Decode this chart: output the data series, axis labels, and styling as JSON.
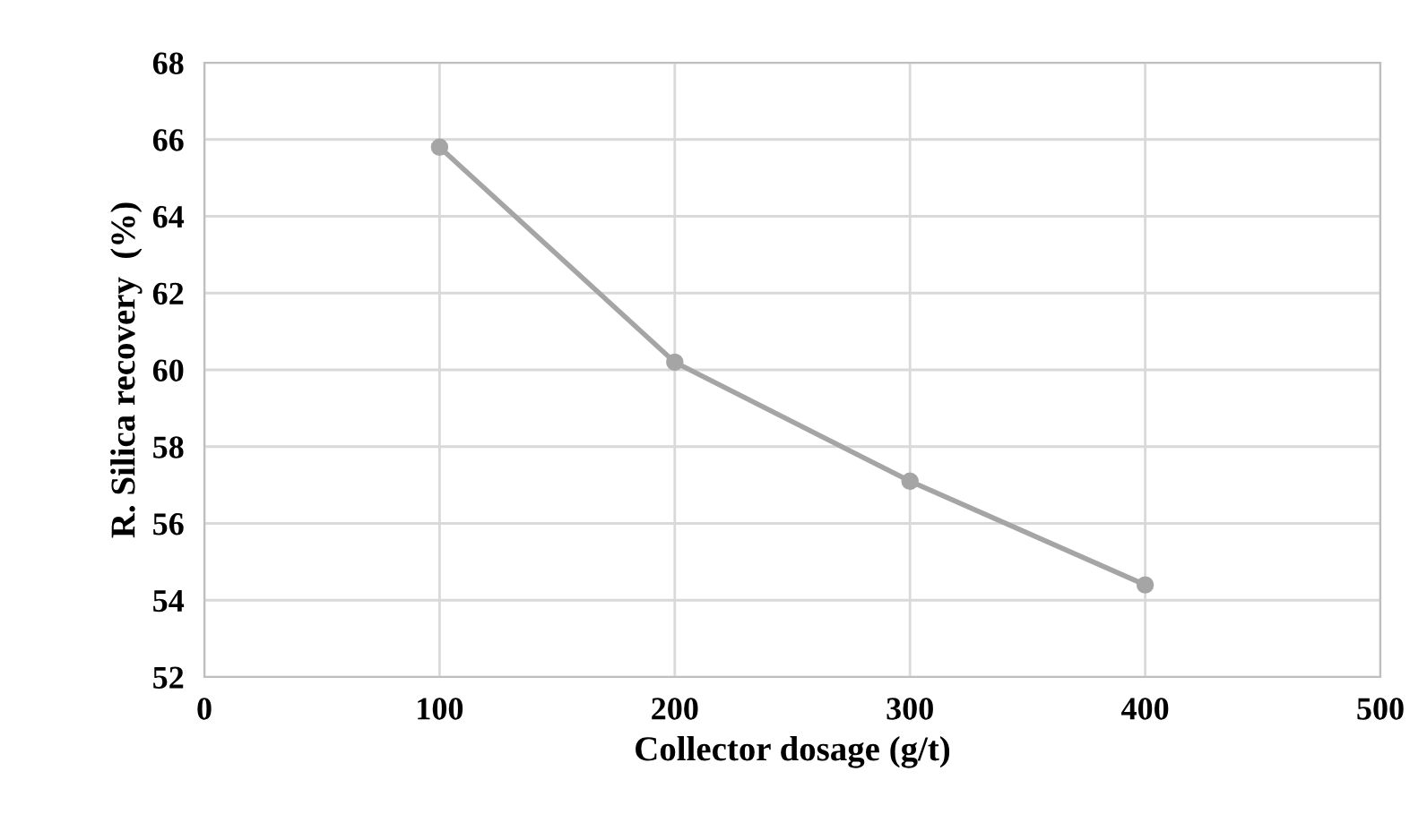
{
  "chart_data": {
    "type": "line",
    "xlabel": "Collector dosage (g/t)",
    "ylabel": "R. Silica recovery  (%)",
    "x": [
      100,
      200,
      300,
      400
    ],
    "series": [
      {
        "color": "#a5a5a5",
        "values": [
          65.8,
          60.2,
          57.1,
          54.4
        ]
      }
    ],
    "xlim": [
      0,
      500
    ],
    "xticks": [
      0,
      100,
      200,
      300,
      400,
      500
    ],
    "ylim": [
      52,
      68
    ],
    "yticks": [
      52,
      54,
      56,
      58,
      60,
      62,
      64,
      66,
      68
    ],
    "grid": true,
    "marker": "circle",
    "line_style": "solid"
  }
}
